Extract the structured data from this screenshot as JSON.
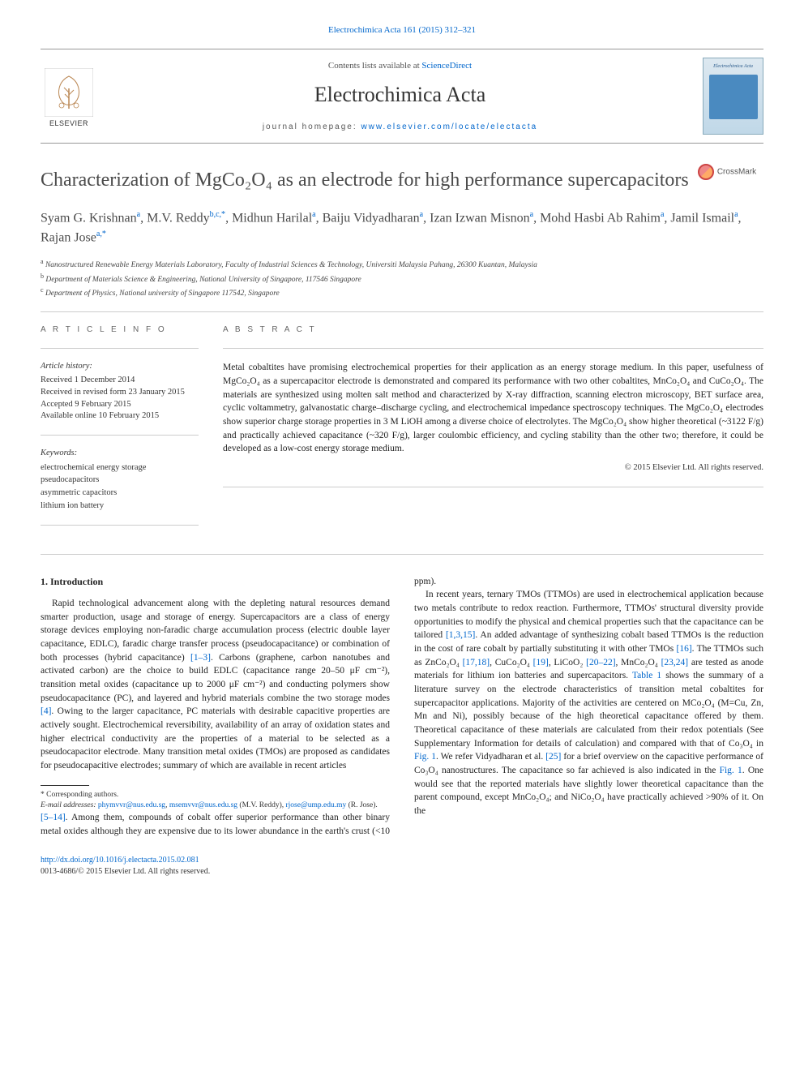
{
  "header": {
    "citation": "Electrochimica Acta 161 (2015) 312–321",
    "contents_prefix": "Contents lists available at ",
    "contents_link": "ScienceDirect",
    "journal_name": "Electrochimica Acta",
    "homepage_prefix": "journal homepage: ",
    "homepage_link": "www.elsevier.com/locate/electacta",
    "publisher_logo": "ELSEVIER",
    "cover_title": "Electrochimica Acta"
  },
  "article": {
    "title": "Characterization of MgCo₂O₄ as an electrode for high performance supercapacitors",
    "crossmark": "CrossMark",
    "authors_html": "Syam G. Krishnan<sup>a</sup>, M.V. Reddy<sup>b,c,*</sup>, Midhun Harilal<sup>a</sup>, Baiju Vidyadharan<sup>a</sup>, Izan Izwan Misnon<sup>a</sup>, Mohd Hasbi Ab Rahim<sup>a</sup>, Jamil Ismail<sup>a</sup>, Rajan Jose<sup>a,*</sup>",
    "affiliations": [
      {
        "sup": "a",
        "text": "Nanostructured Renewable Energy Materials Laboratory, Faculty of Industrial Sciences & Technology, Universiti Malaysia Pahang, 26300 Kuantan, Malaysia"
      },
      {
        "sup": "b",
        "text": "Department of Materials Science & Engineering, National University of Singapore, 117546 Singapore"
      },
      {
        "sup": "c",
        "text": "Department of Physics, National university of Singapore 117542, Singapore"
      }
    ]
  },
  "info": {
    "heading_info": "A R T I C L E   I N F O",
    "history_head": "Article history:",
    "history_lines": [
      "Received 1 December 2014",
      "Received in revised form 23 January 2015",
      "Accepted 9 February 2015",
      "Available online 10 February 2015"
    ],
    "keywords_head": "Keywords:",
    "keywords": [
      "electrochemical energy storage",
      "pseudocapacitors",
      "asymmetric capacitors",
      "lithium ion battery"
    ]
  },
  "abstract": {
    "heading": "A B S T R A C T",
    "text": "Metal cobaltites have promising electrochemical properties for their application as an energy storage medium. In this paper, usefulness of MgCo₂O₄ as a supercapacitor electrode is demonstrated and compared its performance with two other cobaltites, MnCo₂O₄ and CuCo₂O₄. The materials are synthesized using molten salt method and characterized by X-ray diffraction, scanning electron microscopy, BET surface area, cyclic voltammetry, galvanostatic charge–discharge cycling, and electrochemical impedance spectroscopy techniques. The MgCo₂O₄ electrodes show superior charge storage properties in 3 M LiOH among a diverse choice of electrolytes. The MgCo₂O₄ show higher theoretical (~3122 F/g) and practically achieved capacitance (~320 F/g), larger coulombic efficiency, and cycling stability than the other two; therefore, it could be developed as a low-cost energy storage medium.",
    "copyright": "© 2015 Elsevier Ltd. All rights reserved."
  },
  "body": {
    "section1_head": "1. Introduction",
    "p1": "Rapid technological advancement along with the depleting natural resources demand smarter production, usage and storage of energy. Supercapacitors are a class of energy storage devices employing non-faradic charge accumulation process (electric double layer capacitance, EDLC), faradic charge transfer process (pseudocapacitance) or combination of both processes (hybrid capacitance) [1–3]. Carbons (graphene, carbon nanotubes and activated carbon) are the choice to build EDLC (capacitance range 20–50 μF cm⁻²), transition metal oxides (capacitance up to 2000 μF cm⁻²) and conducting polymers show pseudocapacitance (PC), and layered and hybrid materials combine the two storage modes [4]. Owing to the larger capacitance, PC materials with desirable capacitive properties are actively sought. Electrochemical reversibility, availability of an array of oxidation states and higher electrical conductivity are the properties of a material to be selected as a pseudocapacitor electrode. Many transition metal oxides (TMOs) are proposed as candidates for pseudocapacitive electrodes; summary of which are available in recent articles",
    "p1_refs": {
      "r1": "[1–3]",
      "r2": "[4]"
    },
    "p2_lead": "[5–14]. Among them, compounds of cobalt offer superior performance than other binary metal oxides although they are expensive due to its lower abundance in the earth's crust (<10 ppm).",
    "p3": "In recent years, ternary TMOs (TTMOs) are used in electrochemical application because two metals contribute to redox reaction. Furthermore, TTMOs' structural diversity provide opportunities to modify the physical and chemical properties such that the capacitance can be tailored [1,3,15]. An added advantage of synthesizing cobalt based TTMOs is the reduction in the cost of rare cobalt by partially substituting it with other TMOs [16]. The TTMOs such as ZnCo₂O₄ [17,18], CuCo₂O₄ [19], LiCoO₂ [20–22], MnCo₂O₄ [23,24] are tested as anode materials for lithium ion batteries and supercapacitors. Table 1 shows the summary of a literature survey on the electrode characteristics of transition metal cobaltites for supercapacitor applications. Majority of the activities are centered on MCo₂O₄ (M=Cu, Zn, Mn and Ni), possibly because of the high theoretical capacitance offered by them. Theoretical capacitance of these materials are calculated from their redox potentials (See Supplementary Information for details of calculation) and compared with that of Co₃O₄ in Fig. 1. We refer Vidyadharan et al. [25] for a brief overview on the capacitive performance of Co₃O₄ nanostructures. The capacitance so far achieved is also indicated in the Fig. 1. One would see that the reported materials have slightly lower theoretical capacitance than the parent compound, except MnCo₂O₄; and NiCo₂O₄ have practically achieved >90% of it. On the"
  },
  "footnotes": {
    "corresponding": "* Corresponding authors.",
    "emails_label": "E-mail addresses: ",
    "email1": "phymvvr@nus.edu.sg",
    "email2": "msemvvr@nus.edu.sg",
    "email1_name": " (M.V. Reddy), ",
    "email3": "rjose@ump.edu.my",
    "email3_name": " (R. Jose)."
  },
  "doi": {
    "url": "http://dx.doi.org/10.1016/j.electacta.2015.02.081",
    "issn_line": "0013-4686/© 2015 Elsevier Ltd. All rights reserved."
  },
  "colors": {
    "link": "#0066cc",
    "text": "#1a1a1a",
    "heading": "#4a4a4a",
    "rule": "#cccccc"
  }
}
